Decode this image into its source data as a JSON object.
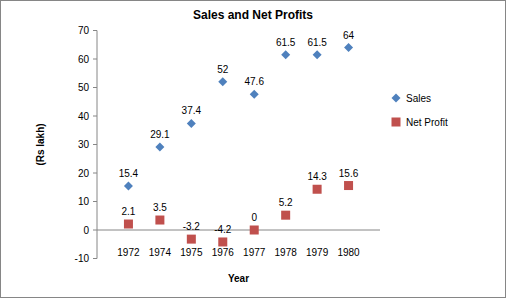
{
  "chart_data": {
    "type": "scatter",
    "title": "Sales and Net Profits",
    "x_label": "Year",
    "y_label": "(Rs lakh)",
    "categories": [
      "1972",
      "1974",
      "1975",
      "1976",
      "1977",
      "1978",
      "1979",
      "1980"
    ],
    "series": [
      {
        "name": "Sales",
        "color": "#4f81bd",
        "marker": "diamond",
        "line_style": "none",
        "values": [
          15.4,
          29.1,
          37.4,
          52,
          47.6,
          61.5,
          61.5,
          64
        ]
      },
      {
        "name": "Net Profit",
        "color": "#c0504d",
        "marker": "square",
        "line_style": "none",
        "values": [
          2.1,
          3.5,
          -3.2,
          -4.2,
          0,
          5.2,
          14.3,
          15.6
        ]
      }
    ],
    "ylim": [
      -10,
      70
    ],
    "yticks": [
      -10,
      0,
      10,
      20,
      30,
      40,
      50,
      60,
      70
    ],
    "grid": false,
    "legend": "right",
    "data_labels": true
  }
}
